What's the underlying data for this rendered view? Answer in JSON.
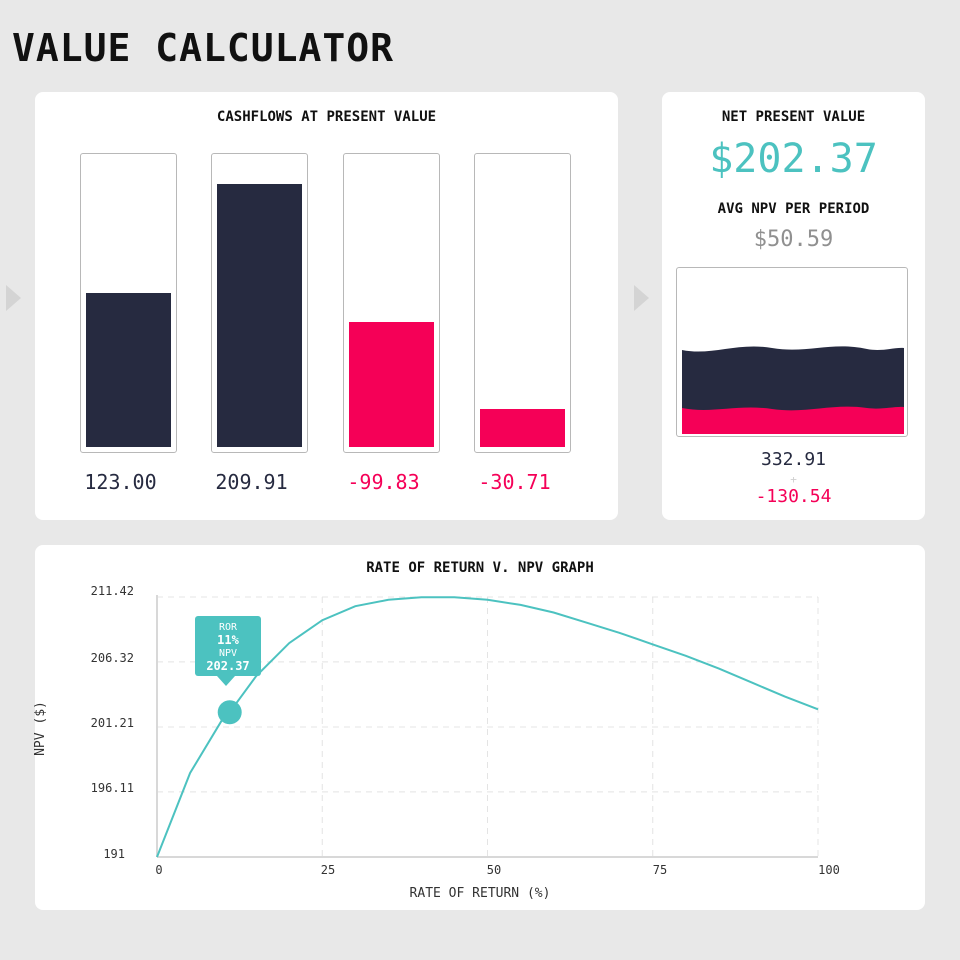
{
  "app": {
    "title": "VALUE CALCULATOR"
  },
  "cashflows": {
    "title": "CASHFLOWS AT PRESENT VALUE",
    "max_scale": 230,
    "items": [
      {
        "label": "123.00",
        "value": 123.0
      },
      {
        "label": "209.91",
        "value": 209.91
      },
      {
        "label": "-99.83",
        "value": -99.83
      },
      {
        "label": "-30.71",
        "value": -30.71
      }
    ]
  },
  "npv": {
    "title": "NET PRESENT VALUE",
    "value": "$202.37",
    "avg_title": "AVG NPV PER PERIOD",
    "avg_value": "$50.59",
    "positive_total": "332.91",
    "plus": "+",
    "negative_total": "-130.54"
  },
  "graph": {
    "title": "RATE OF RETURN V. NPV GRAPH",
    "tooltip": {
      "ror_label": "ROR",
      "ror_value": "11%",
      "npv_label": "NPV",
      "npv_value": "202.37"
    }
  },
  "colors": {
    "positive": "#262a40",
    "negative": "#f50057",
    "accent": "#4cc2c0"
  },
  "chart_data": {
    "type": "line",
    "title": "RATE OF RETURN V. NPV GRAPH",
    "xlabel": "RATE OF RETURN (%)",
    "ylabel": "NPV ($)",
    "xlim": [
      0,
      100
    ],
    "ylim": [
      191,
      211.42
    ],
    "x_ticks": [
      "0",
      "25",
      "50",
      "75",
      "100"
    ],
    "y_ticks": [
      "191",
      "196.11",
      "201.21",
      "206.32",
      "211.42"
    ],
    "grid": true,
    "series": [
      {
        "x": [
          0,
          5,
          10,
          11,
          15,
          20,
          25,
          30,
          35,
          40,
          45,
          50,
          55,
          60,
          65,
          70,
          75,
          80,
          85,
          90,
          95,
          100
        ],
        "y": [
          191.0,
          197.6,
          201.9,
          202.37,
          205.2,
          207.8,
          209.6,
          210.7,
          211.2,
          211.4,
          211.4,
          211.2,
          210.8,
          210.2,
          209.4,
          208.6,
          207.7,
          206.8,
          205.8,
          204.7,
          203.6,
          202.6
        ]
      }
    ],
    "highlight": {
      "x": 11,
      "y": 202.37
    }
  }
}
